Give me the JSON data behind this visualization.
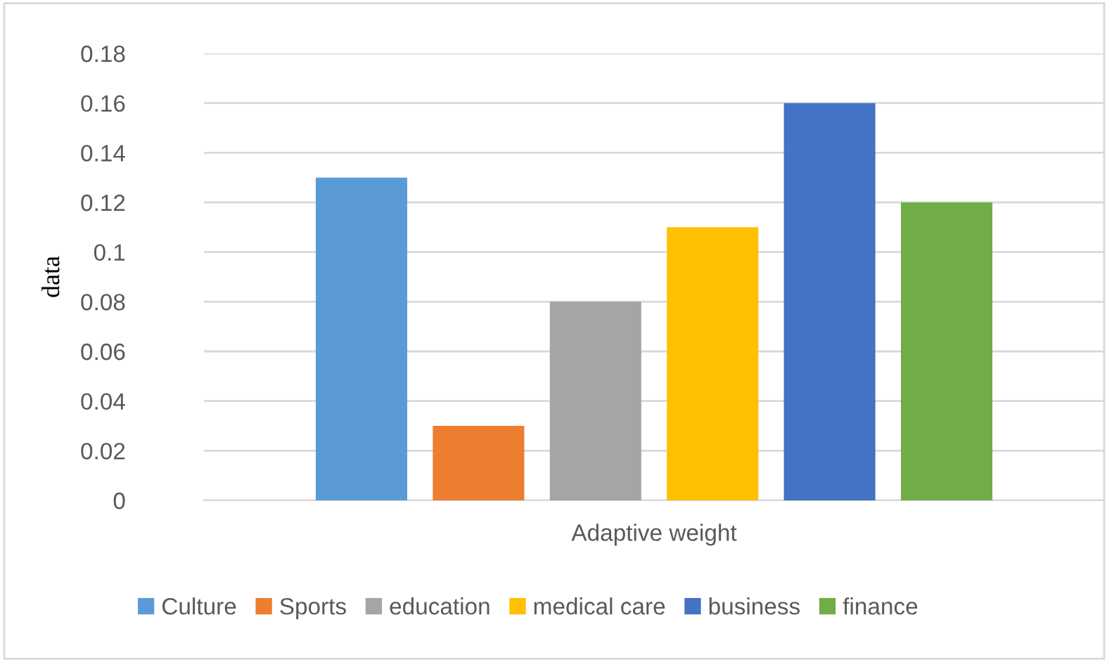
{
  "chart_data": {
    "type": "bar",
    "ylabel": "data",
    "categories": [
      "Adaptive weight"
    ],
    "series": [
      {
        "name": "Culture",
        "color": "#5b9bd5",
        "values": [
          0.13
        ]
      },
      {
        "name": "Sports",
        "color": "#ed7d31",
        "values": [
          0.03
        ]
      },
      {
        "name": "education",
        "color": "#a5a5a5",
        "values": [
          0.08
        ]
      },
      {
        "name": "medical care",
        "color": "#ffc000",
        "values": [
          0.11
        ]
      },
      {
        "name": "business",
        "color": "#4472c4",
        "values": [
          0.16
        ]
      },
      {
        "name": "finance",
        "color": "#70ad47",
        "values": [
          0.12
        ]
      }
    ],
    "ylim": [
      0,
      0.18
    ],
    "yticks": [
      0,
      0.02,
      0.04,
      0.06,
      0.08,
      0.1,
      0.12,
      0.14,
      0.16,
      0.18
    ],
    "grid": "y",
    "legend": "bottom"
  }
}
